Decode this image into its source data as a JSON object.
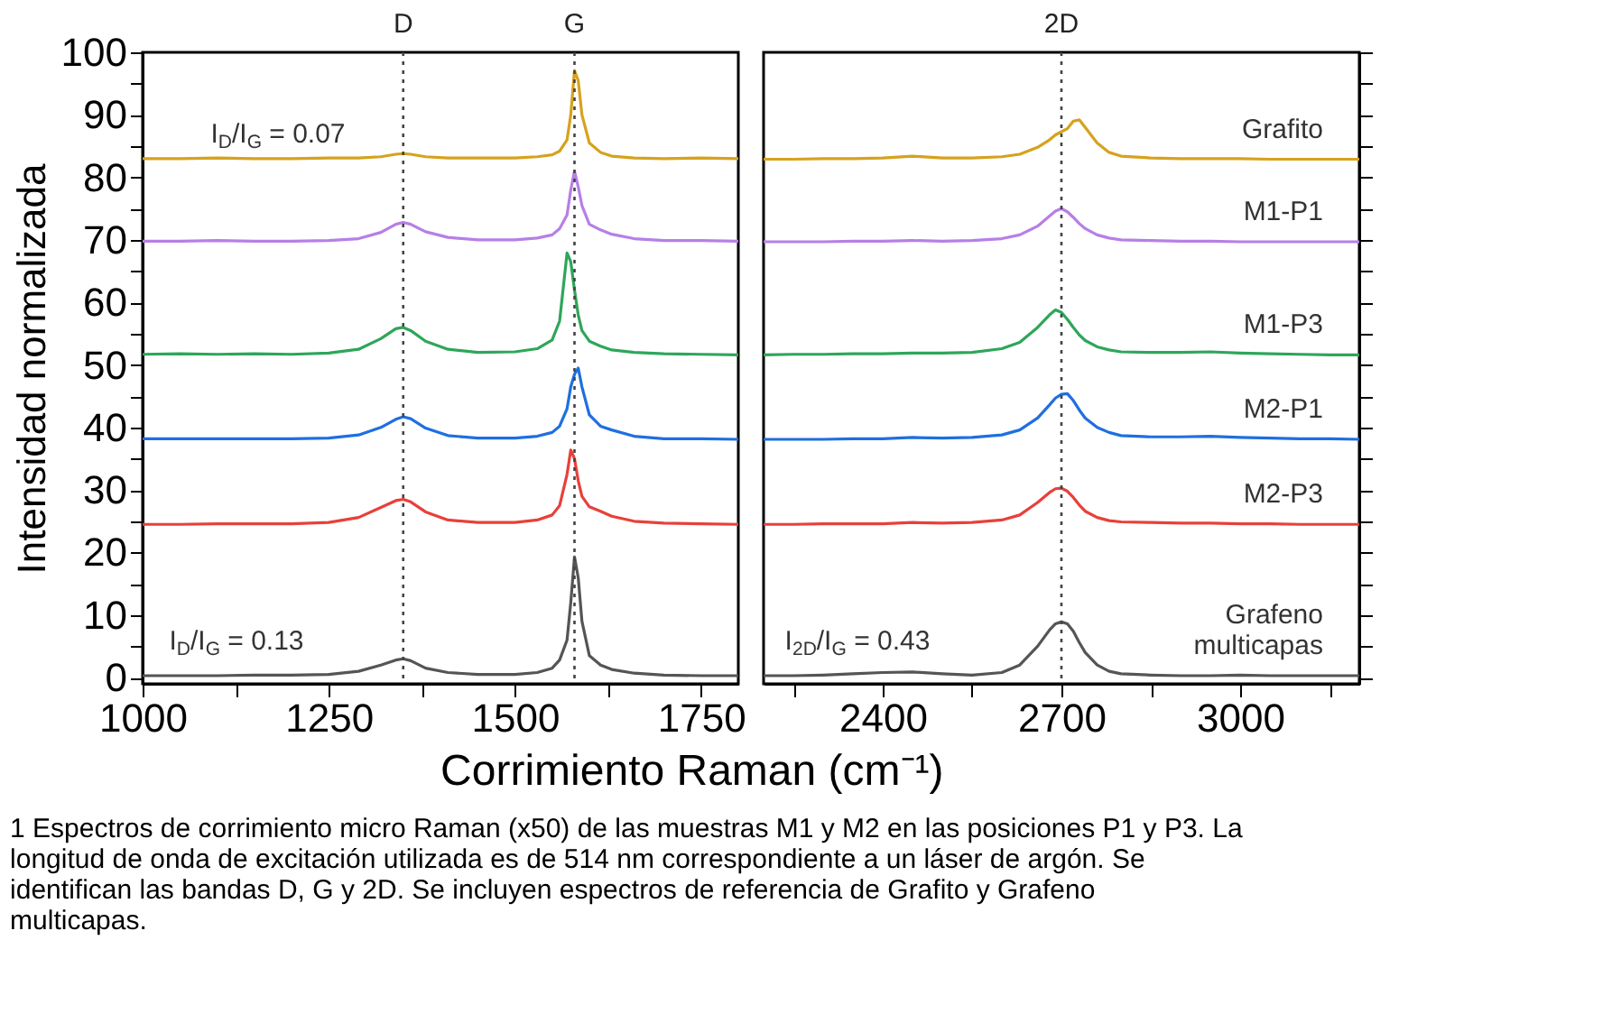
{
  "chart_data": [
    {
      "type": "line",
      "ylabel": "Intensidad normalizada",
      "xlabel": "Corrimiento Raman (cm⁻¹)",
      "xlim": [
        1000,
        1800
      ],
      "xticks": [
        1000,
        {
          "value": 1125,
          "label": null
        },
        1250,
        {
          "value": 1375,
          "label": null
        },
        1500,
        {
          "value": 1625,
          "label": null
        },
        1750
      ],
      "ylim": [
        -1,
        100
      ],
      "yticks": [
        0,
        {
          "value": 5,
          "label": null
        },
        10,
        {
          "value": 15,
          "label": null
        },
        20,
        {
          "value": 25,
          "label": null
        },
        30,
        {
          "value": 35,
          "label": null
        },
        40,
        {
          "value": 45,
          "label": null
        },
        50,
        {
          "value": 55,
          "label": null
        },
        60,
        {
          "value": 65,
          "label": null
        },
        70,
        {
          "value": 75,
          "label": null
        },
        80,
        {
          "value": 85,
          "label": null
        },
        90,
        {
          "value": 95,
          "label": null
        },
        100
      ],
      "ref_lines": [
        {
          "axis": "x",
          "value": 1350,
          "label": "D",
          "line_style": "dotted",
          "color": "#444444"
        },
        {
          "axis": "x",
          "value": 1580,
          "label": "G",
          "line_style": "dotted",
          "color": "#444444"
        }
      ],
      "annotations": [
        "I$_{D}$/I$_{G}$ = 0.07",
        "I$_{D}$/I$_{G}$ = 0.13",
        "1 Espectros de corrimiento micro Raman (x50) de las muestras M1 y M2 en las posiciones P1 y P3. La longitud de onda de excitación utilizada es de 514 nm correspondiente a un láser de argón. Se identifican las bandas D, G y 2D. Se incluyen espectros de referencia de Grafito y Grafeno multicapas."
      ],
      "series": [
        {
          "color": "#d6a21e",
          "x": [
            1000,
            1050,
            1100,
            1150,
            1200,
            1250,
            1290,
            1320,
            1340,
            1350,
            1360,
            1380,
            1410,
            1450,
            1500,
            1530,
            1550,
            1560,
            1570,
            1575,
            1580,
            1585,
            1590,
            1600,
            1615,
            1630,
            1660,
            1700,
            1750,
            1800
          ],
          "values": [
            83.0,
            83.0,
            83.1,
            83.0,
            83.0,
            83.1,
            83.1,
            83.3,
            83.7,
            83.8,
            83.7,
            83.3,
            83.1,
            83.1,
            83.1,
            83.3,
            83.6,
            84.2,
            86.0,
            90.0,
            97.1,
            95.5,
            90.0,
            85.5,
            84.0,
            83.4,
            83.1,
            83.0,
            83.1,
            83.0
          ]
        },
        {
          "color": "#b77fe6",
          "x": [
            1000,
            1050,
            1100,
            1150,
            1200,
            1250,
            1290,
            1320,
            1340,
            1350,
            1360,
            1380,
            1410,
            1450,
            1500,
            1530,
            1550,
            1560,
            1570,
            1575,
            1580,
            1585,
            1590,
            1600,
            1615,
            1630,
            1660,
            1700,
            1750,
            1800
          ],
          "values": [
            69.8,
            69.8,
            69.9,
            69.8,
            69.8,
            69.9,
            70.2,
            71.2,
            72.5,
            72.8,
            72.5,
            71.3,
            70.4,
            70.0,
            70.0,
            70.3,
            70.8,
            71.8,
            74.0,
            78.0,
            81.0,
            78.5,
            75.5,
            72.5,
            71.6,
            70.9,
            70.2,
            69.9,
            69.9,
            69.8
          ]
        },
        {
          "color": "#2ea65a",
          "x": [
            1000,
            1050,
            1100,
            1150,
            1200,
            1250,
            1290,
            1320,
            1340,
            1350,
            1360,
            1380,
            1410,
            1450,
            1500,
            1530,
            1550,
            1560,
            1570,
            1575,
            1580,
            1585,
            1590,
            1600,
            1615,
            1630,
            1660,
            1700,
            1750,
            1800
          ],
          "values": [
            51.7,
            51.8,
            51.7,
            51.8,
            51.7,
            51.9,
            52.5,
            54.2,
            55.8,
            56.0,
            55.5,
            53.8,
            52.5,
            52.0,
            52.1,
            52.6,
            54.0,
            57.0,
            67.9,
            66.5,
            62.0,
            58.0,
            55.5,
            53.8,
            53.0,
            52.4,
            52.0,
            51.8,
            51.7,
            51.6
          ]
        },
        {
          "color": "#1f6fe0",
          "x": [
            1000,
            1050,
            1100,
            1150,
            1200,
            1250,
            1290,
            1320,
            1340,
            1350,
            1360,
            1380,
            1410,
            1450,
            1500,
            1530,
            1550,
            1560,
            1570,
            1575,
            1580,
            1585,
            1590,
            1600,
            1615,
            1630,
            1660,
            1700,
            1750,
            1800
          ],
          "values": [
            38.2,
            38.2,
            38.2,
            38.2,
            38.2,
            38.3,
            38.8,
            40.0,
            41.3,
            41.7,
            41.4,
            39.9,
            38.7,
            38.3,
            38.3,
            38.6,
            39.2,
            40.2,
            43.0,
            46.5,
            48.5,
            49.5,
            46.5,
            42.0,
            40.2,
            39.6,
            38.6,
            38.2,
            38.2,
            38.1
          ]
        },
        {
          "color": "#e8403a",
          "x": [
            1000,
            1050,
            1100,
            1150,
            1200,
            1250,
            1290,
            1320,
            1340,
            1350,
            1360,
            1380,
            1410,
            1450,
            1500,
            1530,
            1550,
            1560,
            1570,
            1575,
            1580,
            1585,
            1590,
            1600,
            1615,
            1630,
            1660,
            1700,
            1750,
            1800
          ],
          "values": [
            24.5,
            24.5,
            24.6,
            24.6,
            24.6,
            24.8,
            25.6,
            27.2,
            28.3,
            28.5,
            28.1,
            26.5,
            25.2,
            24.8,
            24.8,
            25.2,
            26.0,
            27.5,
            32.5,
            36.4,
            35.0,
            31.5,
            29.0,
            27.3,
            26.6,
            25.8,
            25.0,
            24.7,
            24.6,
            24.5
          ]
        },
        {
          "color": "#555555",
          "x": [
            1000,
            1050,
            1100,
            1150,
            1200,
            1250,
            1290,
            1320,
            1340,
            1350,
            1360,
            1380,
            1410,
            1450,
            1500,
            1530,
            1550,
            1560,
            1570,
            1575,
            1580,
            1585,
            1590,
            1600,
            1615,
            1630,
            1660,
            1700,
            1750,
            1800
          ],
          "values": [
            0.3,
            0.3,
            0.3,
            0.4,
            0.4,
            0.5,
            1.0,
            2.0,
            2.8,
            3.0,
            2.7,
            1.5,
            0.8,
            0.5,
            0.5,
            0.8,
            1.5,
            2.8,
            6.0,
            12.0,
            19.3,
            16.0,
            9.0,
            3.5,
            2.0,
            1.3,
            0.7,
            0.4,
            0.3,
            0.3
          ]
        }
      ]
    },
    {
      "type": "line",
      "tick_labels": "x",
      "xlim": [
        2200,
        3200
      ],
      "xticks": [
        {
          "value": 2250,
          "label": null
        },
        2400,
        {
          "value": 2550,
          "label": null
        },
        2700,
        {
          "value": 2850,
          "label": null
        },
        3000,
        {
          "value": 3150,
          "label": null
        }
      ],
      "ylim": [
        -1,
        100
      ],
      "yticks": [
        0,
        {
          "value": 5,
          "label": null
        },
        10,
        {
          "value": 15,
          "label": null
        },
        20,
        {
          "value": 25,
          "label": null
        },
        30,
        {
          "value": 35,
          "label": null
        },
        40,
        {
          "value": 45,
          "label": null
        },
        50,
        {
          "value": 55,
          "label": null
        },
        60,
        {
          "value": 65,
          "label": null
        },
        70,
        {
          "value": 75,
          "label": null
        },
        80,
        {
          "value": 85,
          "label": null
        },
        90,
        {
          "value": 95,
          "label": null
        },
        100
      ],
      "ref_lines": [
        {
          "axis": "x",
          "value": 2700,
          "label": "2D",
          "line_style": "dotted",
          "color": "#444444"
        }
      ],
      "annotations": [
        "I$_{2D}$/I$_{G}$ = 0.43"
      ],
      "series": [
        {
          "name": "Grafito",
          "color": "#d6a21e",
          "x": [
            2200,
            2250,
            2300,
            2350,
            2400,
            2450,
            2500,
            2550,
            2600,
            2630,
            2660,
            2680,
            2690,
            2700,
            2710,
            2720,
            2730,
            2740,
            2760,
            2780,
            2800,
            2850,
            2900,
            2950,
            3000,
            3050,
            3100,
            3150,
            3200
          ],
          "values": [
            82.9,
            82.9,
            83.0,
            83.0,
            83.1,
            83.4,
            83.1,
            83.1,
            83.3,
            83.7,
            84.8,
            86.0,
            86.8,
            87.3,
            87.8,
            89.0,
            89.2,
            88.0,
            85.5,
            84.0,
            83.4,
            83.1,
            83.0,
            83.0,
            83.0,
            82.9,
            82.9,
            82.9,
            82.9
          ]
        },
        {
          "name": "M1-P1",
          "color": "#b77fe6",
          "x": [
            2200,
            2250,
            2300,
            2350,
            2400,
            2450,
            2500,
            2550,
            2600,
            2630,
            2660,
            2680,
            2690,
            2700,
            2710,
            2720,
            2730,
            2740,
            2760,
            2780,
            2800,
            2850,
            2900,
            2950,
            3000,
            3050,
            3100,
            3150,
            3200
          ],
          "values": [
            69.7,
            69.7,
            69.7,
            69.8,
            69.8,
            69.9,
            69.8,
            69.9,
            70.2,
            70.8,
            72.2,
            73.8,
            74.6,
            75.0,
            74.5,
            73.6,
            72.6,
            71.8,
            70.8,
            70.3,
            70.0,
            69.9,
            69.8,
            69.8,
            69.7,
            69.7,
            69.7,
            69.7,
            69.7
          ]
        },
        {
          "name": "M1-P3",
          "color": "#2ea65a",
          "x": [
            2200,
            2250,
            2300,
            2350,
            2400,
            2450,
            2500,
            2550,
            2600,
            2630,
            2660,
            2680,
            2690,
            2700,
            2710,
            2720,
            2730,
            2740,
            2760,
            2780,
            2800,
            2850,
            2900,
            2950,
            3000,
            3050,
            3100,
            3150,
            3200
          ],
          "values": [
            51.6,
            51.7,
            51.7,
            51.8,
            51.8,
            51.9,
            51.9,
            52.0,
            52.6,
            53.6,
            56.0,
            58.0,
            58.8,
            58.4,
            57.3,
            56.0,
            54.8,
            53.9,
            52.9,
            52.4,
            52.1,
            52.0,
            52.0,
            52.1,
            51.9,
            51.8,
            51.7,
            51.6,
            51.6
          ]
        },
        {
          "name": "M2-P1",
          "color": "#1f6fe0",
          "x": [
            2200,
            2250,
            2300,
            2350,
            2400,
            2450,
            2500,
            2550,
            2600,
            2630,
            2660,
            2680,
            2690,
            2700,
            2710,
            2720,
            2730,
            2740,
            2760,
            2780,
            2800,
            2850,
            2900,
            2950,
            3000,
            3050,
            3100,
            3150,
            3200
          ],
          "values": [
            38.1,
            38.1,
            38.1,
            38.2,
            38.2,
            38.4,
            38.3,
            38.4,
            38.8,
            39.6,
            41.5,
            43.6,
            44.7,
            45.3,
            45.4,
            44.3,
            42.8,
            41.5,
            40.0,
            39.2,
            38.7,
            38.5,
            38.5,
            38.6,
            38.4,
            38.3,
            38.2,
            38.2,
            38.1
          ]
        },
        {
          "name": "M2-P3",
          "color": "#e8403a",
          "x": [
            2200,
            2250,
            2300,
            2350,
            2400,
            2450,
            2500,
            2550,
            2600,
            2630,
            2660,
            2680,
            2690,
            2700,
            2710,
            2720,
            2730,
            2740,
            2760,
            2780,
            2800,
            2850,
            2900,
            2950,
            3000,
            3050,
            3100,
            3150,
            3200
          ],
          "values": [
            24.5,
            24.5,
            24.6,
            24.6,
            24.6,
            24.8,
            24.7,
            24.8,
            25.2,
            26.0,
            28.0,
            29.6,
            30.2,
            30.3,
            29.8,
            28.8,
            27.6,
            26.6,
            25.6,
            25.1,
            24.9,
            24.8,
            24.7,
            24.7,
            24.6,
            24.6,
            24.5,
            24.5,
            24.5
          ]
        },
        {
          "name": "Grafeno multicapas",
          "color": "#555555",
          "x": [
            2200,
            2250,
            2300,
            2350,
            2400,
            2450,
            2500,
            2550,
            2600,
            2630,
            2660,
            2680,
            2690,
            2700,
            2710,
            2720,
            2730,
            2740,
            2760,
            2780,
            2800,
            2850,
            2900,
            2950,
            3000,
            3050,
            3100,
            3150,
            3200
          ],
          "values": [
            0.3,
            0.3,
            0.4,
            0.6,
            0.8,
            0.9,
            0.6,
            0.4,
            0.8,
            2.0,
            5.0,
            7.6,
            8.6,
            8.9,
            8.6,
            7.4,
            5.6,
            4.0,
            2.0,
            1.0,
            0.6,
            0.4,
            0.3,
            0.3,
            0.4,
            0.3,
            0.3,
            0.3,
            0.3
          ]
        }
      ]
    }
  ]
}
